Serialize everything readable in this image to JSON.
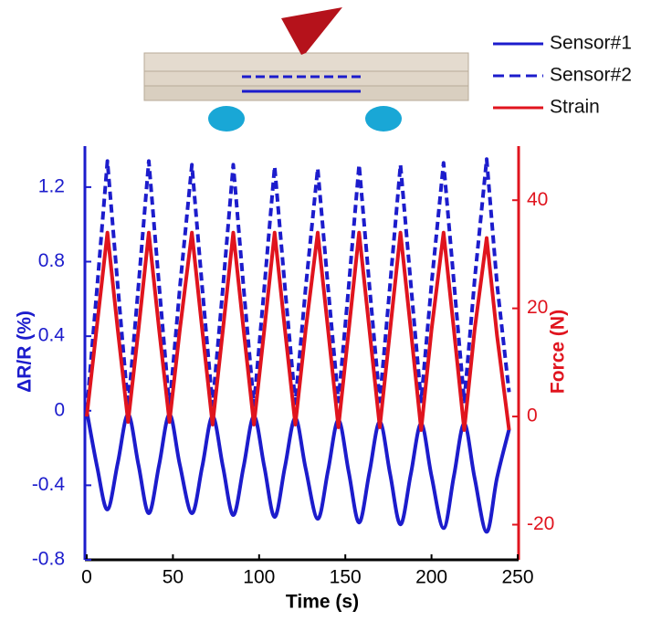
{
  "chart_data": {
    "type": "line",
    "x_label": "Time (s)",
    "y_label": "ΔR/R (%)",
    "y2_label": "Force (N)",
    "x": [
      0,
      6,
      12,
      18,
      24,
      30,
      36,
      42,
      48,
      54,
      61,
      67,
      73,
      79,
      85,
      91,
      97,
      103,
      109,
      115,
      121,
      127,
      134,
      140,
      146,
      152,
      158,
      164,
      170,
      176,
      182,
      188,
      194,
      200,
      207,
      213,
      219,
      225,
      232,
      238,
      245
    ],
    "series": [
      {
        "name": "Sensor#1",
        "color": "#1c1ccc",
        "line_style": "solid",
        "smooth": true,
        "values": [
          0,
          -0.3,
          -0.53,
          -0.28,
          -0.02,
          -0.29,
          -0.55,
          -0.29,
          -0.02,
          -0.29,
          -0.55,
          -0.3,
          -0.03,
          -0.3,
          -0.56,
          -0.3,
          -0.03,
          -0.3,
          -0.57,
          -0.3,
          -0.04,
          -0.31,
          -0.58,
          -0.32,
          -0.05,
          -0.33,
          -0.6,
          -0.33,
          -0.06,
          -0.34,
          -0.61,
          -0.34,
          -0.07,
          -0.35,
          -0.63,
          -0.35,
          -0.07,
          -0.36,
          -0.65,
          -0.36,
          -0.1
        ]
      },
      {
        "name": "Sensor#2",
        "color": "#1c1ccc",
        "line_style": "dashed",
        "smooth": false,
        "values": [
          0,
          0.66,
          1.34,
          0.67,
          0.02,
          0.67,
          1.34,
          0.67,
          0.02,
          0.66,
          1.32,
          0.66,
          0.03,
          0.66,
          1.32,
          0.66,
          0.03,
          0.66,
          1.31,
          0.66,
          0.04,
          0.66,
          1.3,
          0.66,
          0.05,
          0.67,
          1.32,
          0.67,
          0.05,
          0.68,
          1.32,
          0.68,
          0.05,
          0.68,
          1.33,
          0.69,
          0.05,
          0.7,
          1.35,
          0.68,
          0.1
        ]
      },
      {
        "name": "Strain",
        "color": "#e0141e",
        "line_style": "solid",
        "smooth": false,
        "axis": "y2",
        "values": [
          0,
          17,
          34,
          16,
          -1,
          16,
          34,
          16,
          -1,
          16,
          34,
          16,
          -1.5,
          16,
          34,
          16,
          -1.5,
          16,
          34,
          16,
          -1.5,
          16,
          34,
          16,
          -2,
          16,
          34,
          16,
          -2,
          16,
          34,
          16,
          -2.5,
          16,
          34,
          16,
          -2.5,
          16,
          33,
          15,
          -2.5
        ]
      }
    ],
    "xlim": [
      0,
      250
    ],
    "xticks": [
      0,
      50,
      100,
      150,
      200,
      250
    ],
    "ylim": [
      -0.8,
      1.42
    ],
    "yticks": [
      -0.8,
      -0.4,
      0,
      0.4,
      0.8,
      1.2
    ],
    "y2lim": [
      -26.5,
      50
    ],
    "y2ticks": [
      -20,
      0,
      20,
      40
    ],
    "legend": "top-right"
  }
}
